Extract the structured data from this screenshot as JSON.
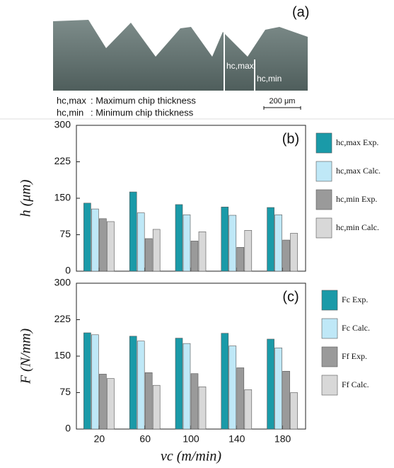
{
  "panel_a": {
    "label": "(a)",
    "markers": [
      "hc,max",
      "hc,min"
    ],
    "definitions": [
      {
        "symbol": "hc,max",
        "text": ": Maximum  chip thickness"
      },
      {
        "symbol": "hc,min",
        "text": ": Minimum  chip thickness"
      }
    ],
    "scale_bar": "200 μm"
  },
  "chart_data": [
    {
      "type": "bar",
      "panel_label": "(b)",
      "ylabel": "h (μm)",
      "categories": [
        "20",
        "60",
        "100",
        "140",
        "180"
      ],
      "series": [
        {
          "name": "hc,max Exp.",
          "color": "#1a9aa8",
          "values": [
            140,
            163,
            137,
            132,
            131
          ]
        },
        {
          "name": "hc,max Calc.",
          "color": "#bfe8f7",
          "values": [
            128,
            120,
            116,
            115,
            116
          ]
        },
        {
          "name": "hc,min Exp.",
          "color": "#9a9a9a",
          "values": [
            108,
            67,
            62,
            49,
            64
          ]
        },
        {
          "name": "hc,min Calc.",
          "color": "#d8d8d8",
          "values": [
            102,
            86,
            81,
            84,
            78
          ]
        }
      ],
      "ylim": [
        0,
        300
      ],
      "yticks": [
        0,
        75,
        150,
        225,
        300
      ],
      "legend": "outside-right"
    },
    {
      "type": "bar",
      "panel_label": "(c)",
      "ylabel": "F (N/mm)",
      "xlabel": "vc (m/min)",
      "categories": [
        "20",
        "60",
        "100",
        "140",
        "180"
      ],
      "series": [
        {
          "name": "Fc Exp.",
          "color": "#1a9aa8",
          "values": [
            198,
            191,
            187,
            197,
            185
          ]
        },
        {
          "name": "Fc Calc.",
          "color": "#bfe8f7",
          "values": [
            194,
            181,
            176,
            171,
            167
          ]
        },
        {
          "name": "Ff Exp.",
          "color": "#9a9a9a",
          "values": [
            113,
            116,
            114,
            126,
            119
          ]
        },
        {
          "name": "Ff Calc.",
          "color": "#d8d8d8",
          "values": [
            104,
            90,
            87,
            81,
            75
          ]
        }
      ],
      "ylim": [
        0,
        300
      ],
      "yticks": [
        0,
        75,
        150,
        225,
        300
      ],
      "legend": "outside-right"
    }
  ]
}
